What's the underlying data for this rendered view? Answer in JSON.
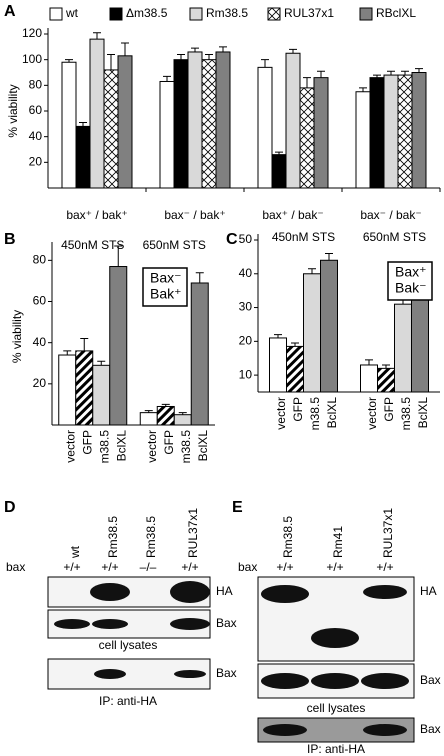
{
  "chart_data": [
    {
      "type": "bar",
      "panel": "A",
      "y_label": "% viability",
      "categories": [
        "bax⁺ / bak⁺",
        "bax⁻ / bak⁺",
        "bax⁺ / bak⁻",
        "bax⁻ / bak⁻"
      ],
      "series": [
        {
          "name": "wt",
          "color": "#ffffff",
          "pattern": "solid",
          "values": [
            98,
            83,
            94,
            75
          ],
          "errors": [
            2,
            4,
            6,
            3
          ]
        },
        {
          "name": "Δm38.5",
          "color": "#000000",
          "pattern": "solid",
          "values": [
            48,
            100,
            26,
            86
          ],
          "errors": [
            3,
            4,
            2,
            2
          ]
        },
        {
          "name": "Rm38.5",
          "color": "#d9d9d9",
          "pattern": "solid",
          "values": [
            116,
            106,
            105,
            88
          ],
          "errors": [
            5,
            3,
            3,
            3
          ]
        },
        {
          "name": "RUL37x1",
          "color": "#ffffff",
          "pattern": "crosshatch",
          "values": [
            92,
            100,
            78,
            88
          ],
          "errors": [
            12,
            4,
            8,
            3
          ]
        },
        {
          "name": "RBclXL",
          "color": "#808080",
          "pattern": "solid",
          "values": [
            103,
            106,
            86,
            90
          ],
          "errors": [
            10,
            4,
            5,
            3
          ]
        }
      ],
      "ylim": [
        0,
        120
      ],
      "yticks": [
        20,
        40,
        60,
        80,
        100,
        120
      ]
    },
    {
      "type": "bar",
      "panel": "B",
      "y_label": "% viability",
      "categories": [
        "vector",
        "GFP",
        "m38.5",
        "BclXL"
      ],
      "category_colors": [
        "#ffffff",
        "#000000",
        "#d9d9d9",
        "#808080"
      ],
      "category_patterns": [
        "solid",
        "diagonal",
        "solid",
        "solid"
      ],
      "groups": [
        {
          "name": "450nM STS",
          "values": [
            34,
            36,
            29,
            77
          ],
          "errors": [
            2,
            6,
            2,
            10
          ]
        },
        {
          "name": "650nM STS",
          "values": [
            6,
            9,
            5,
            69
          ],
          "errors": [
            1,
            1,
            1,
            5
          ]
        }
      ],
      "legend_text": [
        "Bax⁻",
        "Bak⁺"
      ],
      "ylim": [
        0,
        86
      ],
      "yticks": [
        20,
        40,
        60,
        80
      ]
    },
    {
      "type": "bar",
      "panel": "C",
      "categories": [
        "vector",
        "GFP",
        "m38.5",
        "BclXL"
      ],
      "category_colors": [
        "#ffffff",
        "#000000",
        "#d9d9d9",
        "#808080"
      ],
      "category_patterns": [
        "solid",
        "diagonal",
        "solid",
        "solid"
      ],
      "groups": [
        {
          "name": "450nM STS",
          "values": [
            21,
            18.5,
            40,
            44
          ],
          "errors": [
            1,
            1,
            1.5,
            2
          ]
        },
        {
          "name": "650nM STS",
          "values": [
            13,
            12,
            31,
            35
          ],
          "errors": [
            1.5,
            1,
            1.5,
            2
          ]
        }
      ],
      "legend_text": [
        "Bax⁺",
        "Bak⁻"
      ],
      "ylim": [
        5,
        50
      ],
      "yticks": [
        10,
        20,
        30,
        40,
        50
      ]
    }
  ],
  "blots": [
    {
      "panel": "D",
      "lanes": [
        "wt",
        "Rm38.5",
        "Rm38.5",
        "RUL37x1"
      ],
      "genotype_label": "bax",
      "genotypes": [
        "+/+",
        "+/+",
        "–/–",
        "+/+"
      ],
      "bands": [
        "HA",
        "Bax",
        "Bax"
      ],
      "captions": [
        "cell lysates",
        "IP: anti-HA"
      ]
    },
    {
      "panel": "E",
      "lanes": [
        "Rm38.5",
        "Rm41",
        "RUL37x1"
      ],
      "genotype_label": "bax",
      "genotypes": [
        "+/+",
        "+/+",
        "+/+"
      ],
      "bands": [
        "HA",
        "Bax",
        "Bax"
      ],
      "captions": [
        "cell lysates",
        "IP: anti-HA"
      ]
    }
  ]
}
